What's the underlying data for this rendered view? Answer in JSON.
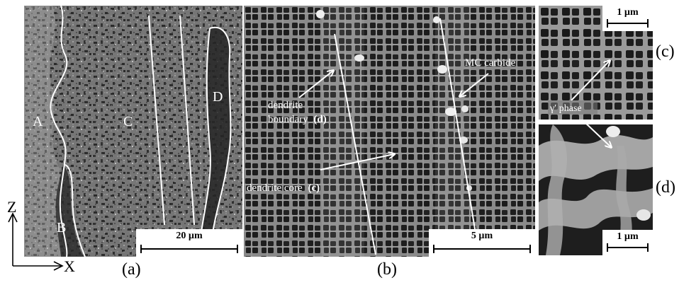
{
  "panels": {
    "a": {
      "caption": "(a)",
      "scale_bar": "20 µm",
      "region_labels": {
        "A": "A",
        "B": "B",
        "C": "C",
        "D": "D"
      }
    },
    "b": {
      "caption": "(b)",
      "scale_bar": "5 µm",
      "annotations": {
        "boundary_line1": "dendrite",
        "boundary_line2": "boundary",
        "boundary_ref": "(d)",
        "core": "dendrite core",
        "core_ref": "(c)",
        "carbide": "MC carbide"
      }
    },
    "c": {
      "side_label": "(c)",
      "scale_bar": "1 µm"
    },
    "d": {
      "side_label": "(d)",
      "scale_bar": "1 µm"
    },
    "shared": {
      "phase_label": "γ′ phase"
    }
  },
  "axes": {
    "z": "Z",
    "x": "X"
  },
  "colors": {
    "annotation": "#ffffff",
    "micrograph_base": "#6d6d6d",
    "pores": "#1a1a1a"
  }
}
